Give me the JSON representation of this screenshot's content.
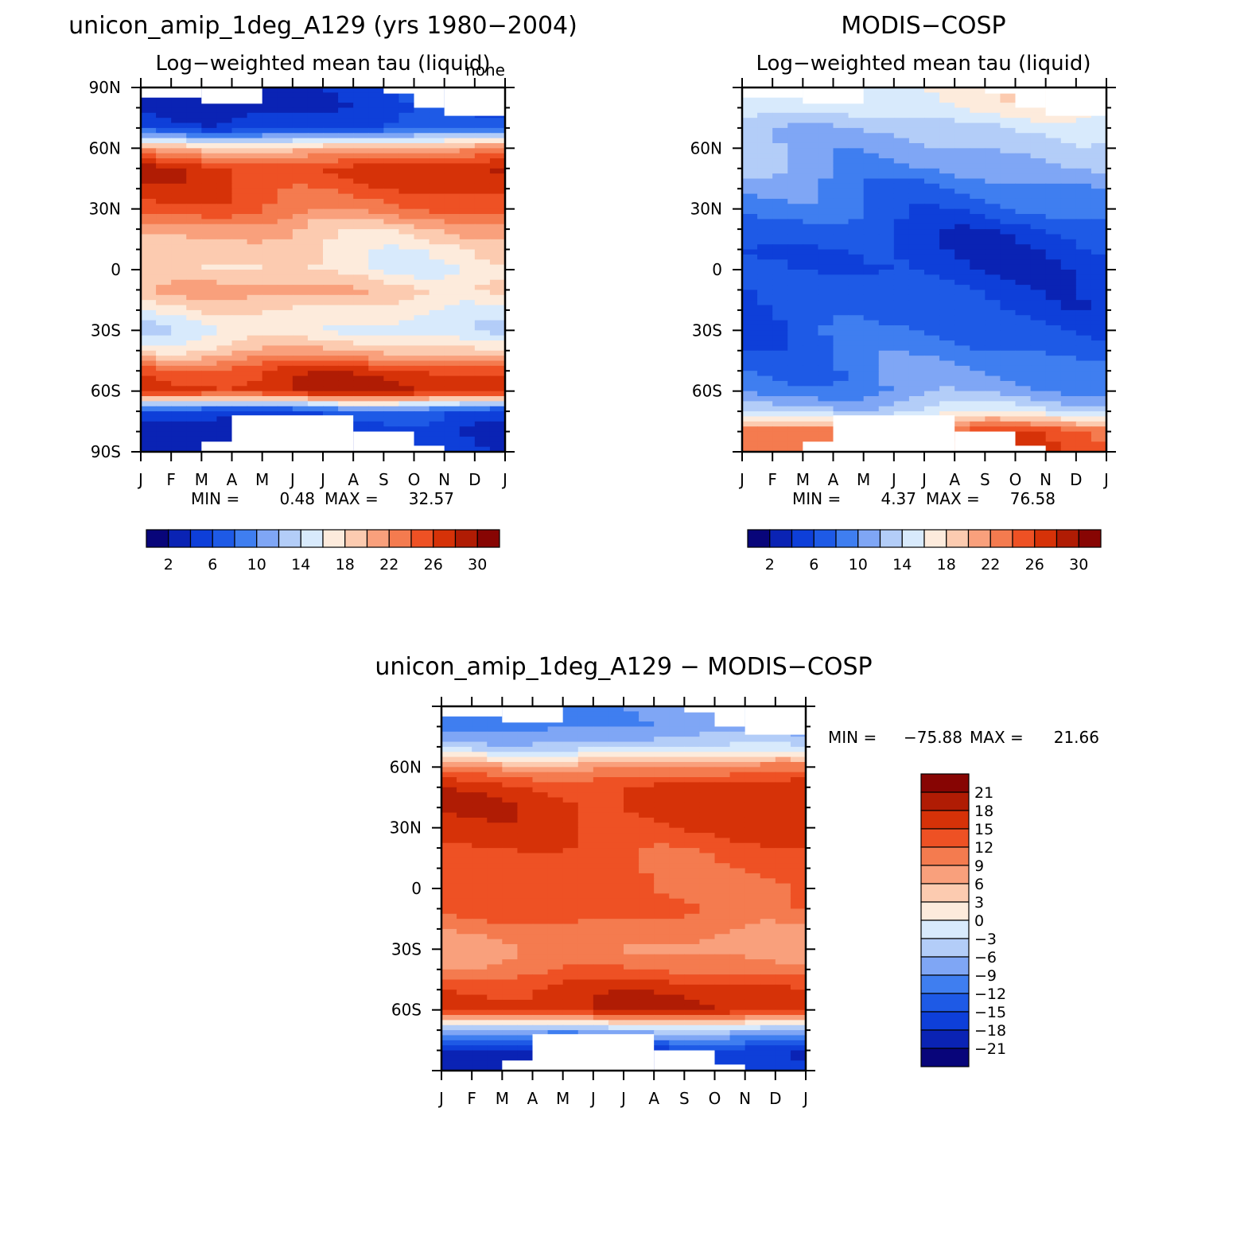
{
  "colors": {
    "seq": [
      "#08057a",
      "#0a23b4",
      "#0e3fd9",
      "#1e5ae6",
      "#3f7ef0",
      "#7fa6f5",
      "#b3cdf8",
      "#d8eafc",
      "#fdebdc",
      "#fccbb0",
      "#f9a07c",
      "#f47b4f",
      "#ee5124",
      "#d63208",
      "#b01c04",
      "#870503"
    ],
    "diff": [
      "#08057a",
      "#0a23b4",
      "#0e3fd9",
      "#1e5ae6",
      "#3f7ef0",
      "#7fa6f5",
      "#b3cdf8",
      "#d8eafc",
      "#fdebdc",
      "#fccbb0",
      "#f9a07c",
      "#f47b4f",
      "#ee5124",
      "#d63208",
      "#b01c04",
      "#870503"
    ]
  },
  "chart_data": [
    {
      "type": "heatmap",
      "title": "unicon_amip_1deg_A129 (yrs 1980−2004)",
      "subtitle": "Log−weighted mean tau (liquid)",
      "corner_label": "none",
      "x_ticks": [
        "J",
        "F",
        "M",
        "A",
        "M",
        "J",
        "J",
        "A",
        "S",
        "O",
        "N",
        "D",
        "J"
      ],
      "y_ticks": [
        "90S",
        "60S",
        "30S",
        "0",
        "30N",
        "60N",
        "90N"
      ],
      "ylim": [
        -90,
        90
      ],
      "min": "0.48",
      "max": "32.57",
      "min_label": "MIN =",
      "max_label": "MAX =",
      "levels": [
        2,
        4,
        6,
        8,
        10,
        12,
        14,
        16,
        18,
        20,
        22,
        24,
        26,
        28,
        30
      ],
      "colorbar_labels": [
        "2",
        "6",
        "10",
        "14",
        "18",
        "22",
        "26",
        "30"
      ],
      "latitude_profile": {
        "lat": [
          -80,
          -70,
          -60,
          -50,
          -40,
          -30,
          -20,
          -10,
          0,
          10,
          20,
          30,
          40,
          50,
          60,
          70,
          80
        ],
        "values": [
          3,
          6,
          28,
          26,
          19,
          15,
          17,
          20,
          17,
          18,
          20,
          24,
          26,
          27,
          20,
          6,
          4
        ]
      }
    },
    {
      "type": "heatmap",
      "title": "MODIS−COSP",
      "subtitle": "Log−weighted mean tau (liquid)",
      "x_ticks": [
        "J",
        "F",
        "M",
        "A",
        "M",
        "J",
        "J",
        "A",
        "S",
        "O",
        "N",
        "D",
        "J"
      ],
      "y_ticks": [
        "60S",
        "30S",
        "0",
        "30N",
        "60N"
      ],
      "ylim": [
        -90,
        90
      ],
      "min": "4.37",
      "max": "76.58",
      "min_label": "MIN =",
      "max_label": "MAX =",
      "levels": [
        2,
        4,
        6,
        8,
        10,
        12,
        14,
        16,
        18,
        20,
        22,
        24,
        26,
        28,
        30
      ],
      "colorbar_labels": [
        "2",
        "6",
        "10",
        "14",
        "18",
        "22",
        "26",
        "30"
      ],
      "latitude_profile": {
        "lat": [
          -80,
          -70,
          -60,
          -50,
          -40,
          -30,
          -20,
          -10,
          0,
          10,
          20,
          30,
          40,
          50,
          60,
          70,
          80
        ],
        "values": [
          24,
          14,
          10,
          9,
          8,
          7,
          6,
          6,
          5,
          5,
          6,
          8,
          9,
          11,
          12,
          13,
          16
        ]
      }
    },
    {
      "type": "heatmap",
      "title": "unicon_amip_1deg_A129 − MODIS−COSP",
      "x_ticks": [
        "J",
        "F",
        "M",
        "A",
        "M",
        "J",
        "J",
        "A",
        "S",
        "O",
        "N",
        "D",
        "J"
      ],
      "y_ticks": [
        "60S",
        "30S",
        "0",
        "30N",
        "60N"
      ],
      "ylim": [
        -90,
        90
      ],
      "min": "−75.88",
      "max": "21.66",
      "min_label": "MIN =",
      "max_label": "MAX =",
      "levels": [
        -21,
        -18,
        -15,
        -12,
        -9,
        -6,
        -3,
        0,
        3,
        6,
        9,
        12,
        15,
        18,
        21
      ],
      "colorbar_labels": [
        "21",
        "18",
        "15",
        "12",
        "9",
        "6",
        "3",
        "0",
        "−3",
        "−6",
        "−9",
        "−12",
        "−15",
        "−18",
        "−21"
      ],
      "latitude_profile": {
        "lat": [
          -80,
          -70,
          -60,
          -50,
          -40,
          -30,
          -20,
          -10,
          0,
          10,
          20,
          30,
          40,
          50,
          60,
          70,
          80
        ],
        "values": [
          -18,
          -6,
          18,
          16,
          11,
          8,
          10,
          13,
          12,
          13,
          14,
          16,
          17,
          16,
          9,
          -4,
          -9
        ]
      }
    }
  ]
}
